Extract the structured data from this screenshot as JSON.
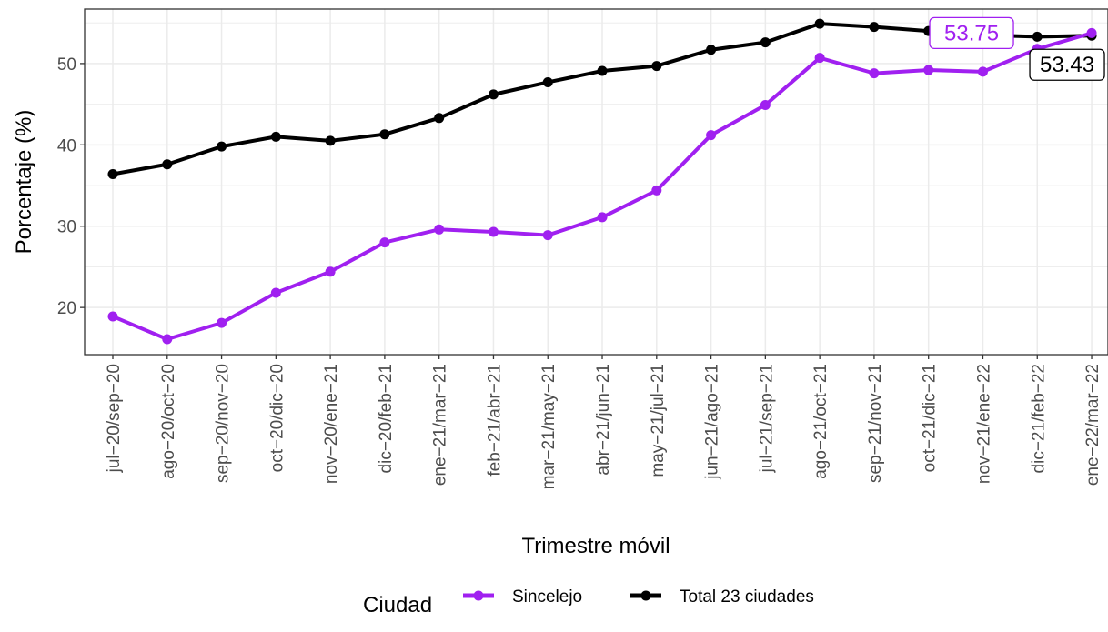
{
  "chart_data": {
    "type": "line",
    "xlabel": "Trimestre móvil",
    "ylabel": "Porcentaje (%)",
    "ylim": [
      14.2,
      56.7
    ],
    "yticks": [
      20,
      30,
      40,
      50
    ],
    "grid": true,
    "legend_position": "bottom",
    "legend_title": "Ciudad",
    "categories": [
      "jul−20/sep−20",
      "ago−20/oct−20",
      "sep−20/nov−20",
      "oct−20/dic−20",
      "nov−20/ene−21",
      "dic−20/feb−21",
      "ene−21/mar−21",
      "feb−21/abr−21",
      "mar−21/may−21",
      "abr−21/jun−21",
      "may−21/jul−21",
      "jun−21/ago−21",
      "jul−21/sep−21",
      "ago−21/oct−21",
      "sep−21/nov−21",
      "oct−21/dic−21",
      "nov−21/ene−22",
      "dic−21/feb−22",
      "ene−22/mar−22"
    ],
    "series": [
      {
        "name": "Sincelejo",
        "color": "#a020f0",
        "values": [
          18.9,
          16.1,
          18.1,
          21.8,
          24.4,
          28.0,
          29.6,
          29.3,
          28.9,
          31.1,
          34.4,
          41.2,
          44.9,
          50.7,
          48.8,
          49.2,
          49.0,
          51.8,
          53.75
        ]
      },
      {
        "name": "Total 23 ciudades",
        "color": "#000000",
        "values": [
          36.4,
          37.6,
          39.8,
          41.0,
          40.5,
          41.3,
          43.3,
          46.2,
          47.7,
          49.1,
          49.7,
          51.7,
          52.6,
          54.9,
          54.5,
          54.0,
          53.5,
          53.3,
          53.43
        ]
      }
    ],
    "annotations": [
      {
        "series": "Sincelejo",
        "text": "53.75",
        "color": "#a020f0"
      },
      {
        "series": "Total 23 ciudades",
        "text": "53.43",
        "color": "#000000"
      }
    ]
  }
}
